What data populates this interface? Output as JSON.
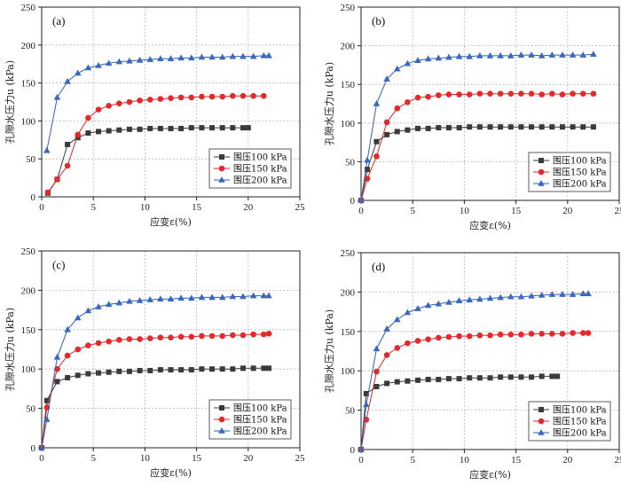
{
  "colors": {
    "series_100": "#3a3a3a",
    "series_150": "#e0242a",
    "series_200": "#2f5fb0",
    "marker_100": "#3a3a3a",
    "marker_150": "#e5282a",
    "marker_200": "#3a68c0"
  },
  "chart_data": [
    {
      "type": "line",
      "panel_label": "(a)",
      "xlabel": "应变ε(%)",
      "ylabel": "孔隙水压力u (kPa)",
      "xlim": [
        0,
        25
      ],
      "ylim": [
        0,
        250
      ],
      "xticks": [
        "0",
        "5",
        "10",
        "15",
        "20",
        "25"
      ],
      "yticks": [
        "0",
        "50",
        "100",
        "150",
        "200",
        "250"
      ],
      "grid": true,
      "legend_position": "lower-right",
      "series": [
        {
          "name": "围压100 kPa",
          "marker": "square",
          "x": [
            0.6,
            1.5,
            2.5,
            3.5,
            4.5,
            5.5,
            6.5,
            7.5,
            8.5,
            9.5,
            10.5,
            11.5,
            12.5,
            13.5,
            14.5,
            15.5,
            16.5,
            17.5,
            18.5,
            19.5,
            20.0
          ],
          "y": [
            5,
            23,
            69,
            78,
            84,
            86,
            87,
            88,
            89,
            89,
            90,
            90,
            90,
            90,
            91,
            91,
            91,
            91,
            91,
            91,
            91
          ]
        },
        {
          "name": "围压150 kPa",
          "marker": "circle",
          "x": [
            0.6,
            1.5,
            2.5,
            3.5,
            4.5,
            5.5,
            6.5,
            7.5,
            8.5,
            9.5,
            10.5,
            11.5,
            12.5,
            13.5,
            14.5,
            15.5,
            16.5,
            17.5,
            18.5,
            19.5,
            20.5,
            21.5
          ],
          "y": [
            6,
            23,
            41,
            82,
            104,
            115,
            120,
            123,
            125,
            127,
            128,
            129,
            130,
            131,
            131,
            132,
            132,
            132,
            133,
            133,
            133,
            133
          ]
        },
        {
          "name": "围压200 kPa",
          "marker": "triangle",
          "x": [
            0.5,
            1.5,
            2.5,
            3.5,
            4.5,
            5.5,
            6.5,
            7.5,
            8.5,
            9.5,
            10.5,
            11.5,
            12.5,
            13.5,
            14.5,
            15.5,
            16.5,
            17.5,
            18.5,
            19.5,
            20.5,
            21.5,
            22.0
          ],
          "y": [
            61,
            131,
            152,
            163,
            170,
            173,
            176,
            178,
            179,
            180,
            181,
            182,
            182,
            183,
            183,
            184,
            184,
            184,
            185,
            185,
            185,
            186,
            186
          ]
        }
      ]
    },
    {
      "type": "line",
      "panel_label": "(b)",
      "xlabel": "应变ε(%)",
      "ylabel": "孔隙水压力u (kPa)",
      "xlim": [
        0,
        25
      ],
      "ylim": [
        0,
        250
      ],
      "xticks": [
        "0",
        "5",
        "10",
        "15",
        "20",
        "25"
      ],
      "yticks": [
        "0",
        "50",
        "100",
        "150",
        "200",
        "250"
      ],
      "grid": true,
      "legend_position": "lower-right",
      "series": [
        {
          "name": "围压100 kPa",
          "marker": "square",
          "x": [
            0,
            0.6,
            1.5,
            2.5,
            3.5,
            4.5,
            5.5,
            6.5,
            7.5,
            8.5,
            9.5,
            10.5,
            11.5,
            12.5,
            13.5,
            14.5,
            15.5,
            16.5,
            17.5,
            18.5,
            19.5,
            20.5,
            21.5,
            22.5
          ],
          "y": [
            0,
            40,
            76,
            85,
            89,
            91,
            93,
            93,
            94,
            94,
            94,
            95,
            95,
            95,
            95,
            95,
            95,
            95,
            95,
            95,
            95,
            95,
            95,
            95
          ]
        },
        {
          "name": "围压150 kPa",
          "marker": "circle",
          "x": [
            0,
            0.6,
            1.5,
            2.5,
            3.5,
            4.5,
            5.5,
            6.5,
            7.5,
            8.5,
            9.5,
            10.5,
            11.5,
            12.5,
            13.5,
            14.5,
            15.5,
            16.5,
            17.5,
            18.5,
            19.5,
            20.5,
            21.5,
            22.5
          ],
          "y": [
            0,
            28,
            57,
            101,
            119,
            127,
            133,
            134,
            136,
            137,
            137,
            137,
            138,
            138,
            138,
            138,
            138,
            138,
            137,
            138,
            137,
            138,
            138,
            138
          ]
        },
        {
          "name": "围压200 kPa",
          "marker": "triangle",
          "x": [
            0,
            0.6,
            1.5,
            2.5,
            3.5,
            4.5,
            5.5,
            6.5,
            7.5,
            8.5,
            9.5,
            10.5,
            11.5,
            12.5,
            13.5,
            14.5,
            15.5,
            16.5,
            17.5,
            18.5,
            19.5,
            20.5,
            21.5,
            22.5
          ],
          "y": [
            0,
            52,
            125,
            157,
            170,
            177,
            181,
            183,
            184,
            185,
            186,
            186,
            187,
            187,
            187,
            187,
            188,
            188,
            187,
            188,
            188,
            188,
            188,
            189
          ]
        }
      ]
    },
    {
      "type": "line",
      "panel_label": "(c)",
      "xlabel": "应变ε(%)",
      "ylabel": "孔隙水压力u (kPa)",
      "xlim": [
        0,
        25
      ],
      "ylim": [
        0,
        250
      ],
      "xticks": [
        "0",
        "5",
        "10",
        "15",
        "20",
        "25"
      ],
      "yticks": [
        "0",
        "50",
        "100",
        "150",
        "200",
        "250"
      ],
      "grid": true,
      "legend_position": "lower-right",
      "series": [
        {
          "name": "围压100 kPa",
          "marker": "square",
          "x": [
            0,
            0.5,
            1.5,
            2.5,
            3.5,
            4.5,
            5.5,
            6.5,
            7.5,
            8.5,
            9.5,
            10.5,
            11.5,
            12.5,
            13.5,
            14.5,
            15.5,
            16.5,
            17.5,
            18.5,
            19.5,
            20.5,
            21.5,
            22.0
          ],
          "y": [
            0,
            60,
            84,
            89,
            92,
            94,
            95,
            96,
            97,
            97,
            98,
            98,
            99,
            99,
            99,
            99,
            100,
            100,
            100,
            100,
            101,
            101,
            101,
            101
          ]
        },
        {
          "name": "围压150 kPa",
          "marker": "circle",
          "x": [
            0,
            0.5,
            1.5,
            2.5,
            3.5,
            4.5,
            5.5,
            6.5,
            7.5,
            8.5,
            9.5,
            10.5,
            11.5,
            12.5,
            13.5,
            14.5,
            15.5,
            16.5,
            17.5,
            18.5,
            19.5,
            20.5,
            21.5,
            22.0
          ],
          "y": [
            0,
            51,
            100,
            117,
            125,
            130,
            133,
            135,
            137,
            138,
            138,
            139,
            140,
            140,
            141,
            141,
            142,
            142,
            142,
            143,
            143,
            144,
            144,
            145
          ]
        },
        {
          "name": "围压200 kPa",
          "marker": "triangle",
          "x": [
            0,
            0.5,
            1.5,
            2.5,
            3.5,
            4.5,
            5.5,
            6.5,
            7.5,
            8.5,
            9.5,
            10.5,
            11.5,
            12.5,
            13.5,
            14.5,
            15.5,
            16.5,
            17.5,
            18.5,
            19.5,
            20.5,
            21.5,
            22.0
          ],
          "y": [
            0,
            36,
            115,
            150,
            165,
            174,
            179,
            182,
            184,
            186,
            187,
            188,
            189,
            189,
            190,
            190,
            191,
            191,
            191,
            192,
            192,
            193,
            193,
            193
          ]
        }
      ]
    },
    {
      "type": "line",
      "panel_label": "(d)",
      "xlabel": "应变ε(%)",
      "ylabel": "孔隙水压力u (kPa)",
      "xlim": [
        0,
        25
      ],
      "ylim": [
        0,
        250
      ],
      "xticks": [
        "0",
        "5",
        "10",
        "15",
        "20",
        "25"
      ],
      "yticks": [
        "0",
        "50",
        "100",
        "150",
        "200",
        "250"
      ],
      "grid": true,
      "legend_position": "lower-right",
      "series": [
        {
          "name": "围压100 kPa",
          "marker": "square",
          "x": [
            0,
            0.5,
            1.5,
            2.5,
            3.5,
            4.5,
            5.5,
            6.5,
            7.5,
            8.5,
            9.5,
            10.5,
            11.5,
            12.5,
            13.5,
            14.5,
            15.5,
            16.5,
            17.5,
            18.5,
            19.0
          ],
          "y": [
            0,
            71,
            80,
            84,
            86,
            87,
            88,
            89,
            89,
            90,
            90,
            91,
            91,
            91,
            92,
            92,
            92,
            92,
            93,
            93,
            93
          ]
        },
        {
          "name": "围压150 kPa",
          "marker": "circle",
          "x": [
            0,
            0.5,
            1.5,
            2.5,
            3.5,
            4.5,
            5.5,
            6.5,
            7.5,
            8.5,
            9.5,
            10.5,
            11.5,
            12.5,
            13.5,
            14.5,
            15.5,
            16.5,
            17.5,
            18.5,
            19.5,
            20.5,
            21.5,
            22.0
          ],
          "y": [
            0,
            38,
            99,
            120,
            129,
            135,
            138,
            140,
            142,
            143,
            144,
            144,
            145,
            145,
            146,
            146,
            146,
            147,
            147,
            147,
            147,
            148,
            148,
            148
          ]
        },
        {
          "name": "围压200 kPa",
          "marker": "triangle",
          "x": [
            0,
            0.5,
            1.5,
            2.5,
            3.5,
            4.5,
            5.5,
            6.5,
            7.5,
            8.5,
            9.5,
            10.5,
            11.5,
            12.5,
            13.5,
            14.5,
            15.5,
            16.5,
            17.5,
            18.5,
            19.5,
            20.5,
            21.5,
            22.0
          ],
          "y": [
            0,
            57,
            128,
            153,
            165,
            174,
            179,
            183,
            185,
            187,
            189,
            190,
            191,
            192,
            193,
            194,
            194,
            195,
            196,
            197,
            197,
            197,
            198,
            198
          ]
        }
      ]
    }
  ]
}
